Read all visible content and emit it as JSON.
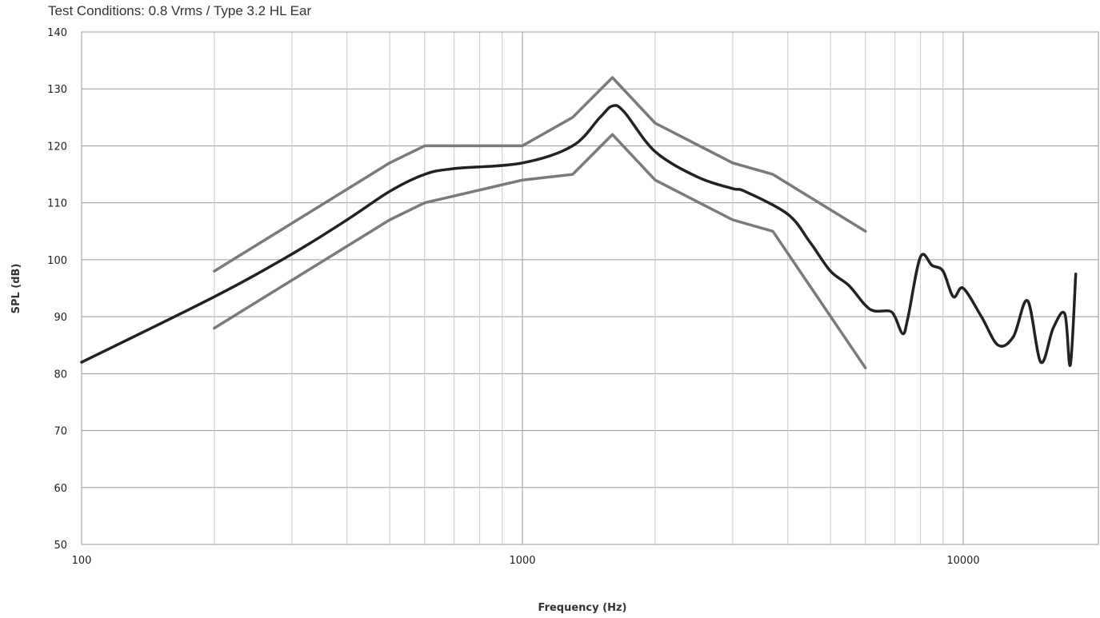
{
  "chart_data": {
    "type": "line",
    "subtitle": "Test Conditions: 0.8 Vrms / Type 3.2 HL Ear",
    "xlabel": "Frequency (Hz)",
    "ylabel": "SPL (dB)",
    "x_scale": "log",
    "xlim": [
      100,
      18000
    ],
    "ylim": [
      50,
      140
    ],
    "x_ticks": [
      100,
      1000,
      10000
    ],
    "x_tick_labels": [
      "100",
      "1000",
      "10000"
    ],
    "y_ticks": [
      50,
      60,
      70,
      80,
      90,
      100,
      110,
      120,
      130,
      140
    ],
    "y_tick_labels": [
      "50",
      "60",
      "70",
      "80",
      "90",
      "100",
      "110",
      "120",
      "130",
      "140"
    ],
    "grid": true,
    "legend": "none",
    "series": [
      {
        "color": "#7a7a7a",
        "x": [
          200,
          500,
          600,
          1000,
          1300,
          1600,
          2000,
          3000,
          3700,
          6000
        ],
        "y": [
          98,
          117,
          120,
          120,
          125,
          132,
          124,
          117,
          115,
          105
        ]
      },
      {
        "color": "#222222",
        "x": [
          100,
          200,
          300,
          400,
          500,
          600,
          700,
          1000,
          1300,
          1500,
          1600,
          1700,
          2000,
          2500,
          3000,
          3200,
          4000,
          4500,
          5000,
          5500,
          6000,
          6300,
          6800,
          7000,
          7300,
          7500,
          8000,
          8500,
          9000,
          9500,
          10000,
          11000,
          12000,
          13000,
          14000,
          15000,
          16000,
          17000,
          17500,
          18000
        ],
        "y": [
          82,
          93.5,
          101,
          107,
          112,
          115,
          116,
          117,
          120,
          125,
          127,
          126,
          119,
          114.5,
          112.5,
          112,
          108,
          103,
          98,
          95.5,
          92,
          91,
          91,
          90,
          87,
          90,
          100.5,
          99,
          98,
          93.5,
          95,
          90,
          85,
          86.5,
          92.8,
          82,
          88,
          90.5,
          81.5,
          97.5
        ]
      },
      {
        "color": "#7a7a7a",
        "x": [
          200,
          500,
          600,
          1000,
          1300,
          1600,
          2000,
          3000,
          3700,
          6000
        ],
        "y": [
          88,
          107,
          110,
          114,
          115,
          122,
          114,
          107,
          105,
          81
        ]
      }
    ]
  }
}
